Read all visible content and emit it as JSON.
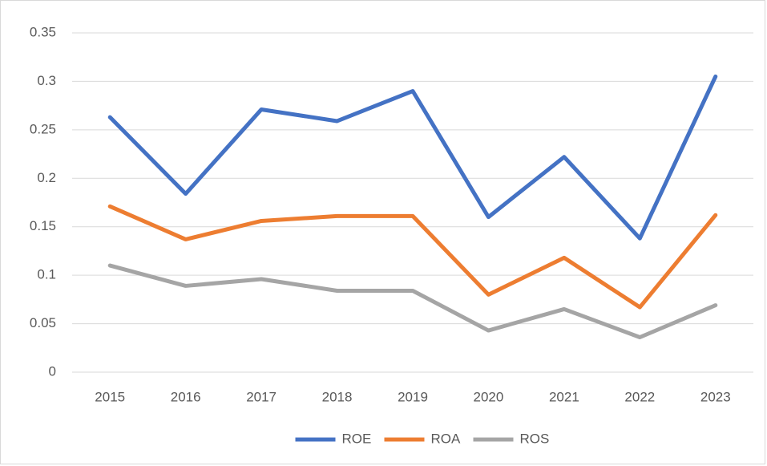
{
  "chart_data": {
    "type": "line",
    "categories": [
      "2015",
      "2016",
      "2017",
      "2018",
      "2019",
      "2020",
      "2021",
      "2022",
      "2023"
    ],
    "series": [
      {
        "name": "ROE",
        "color": "#4472c4",
        "values": [
          0.263,
          0.184,
          0.271,
          0.259,
          0.29,
          0.16,
          0.222,
          0.138,
          0.305
        ]
      },
      {
        "name": "ROA",
        "color": "#ed7d31",
        "values": [
          0.171,
          0.137,
          0.156,
          0.161,
          0.161,
          0.08,
          0.118,
          0.067,
          0.162
        ]
      },
      {
        "name": "ROS",
        "color": "#a5a5a5",
        "values": [
          0.11,
          0.089,
          0.096,
          0.084,
          0.084,
          0.043,
          0.065,
          0.036,
          0.069
        ]
      }
    ],
    "ylim": [
      0,
      0.35
    ],
    "yticks": [
      0,
      0.05,
      0.1,
      0.15,
      0.2,
      0.25,
      0.3,
      0.35
    ],
    "grid": true,
    "legend": "bottom"
  }
}
